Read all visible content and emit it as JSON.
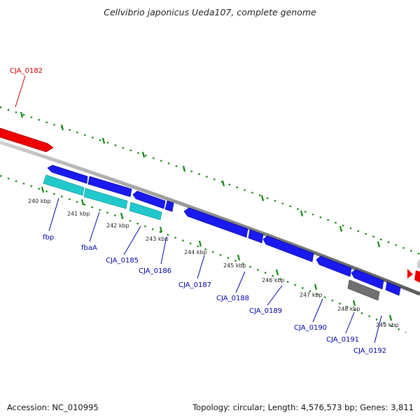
{
  "title": "Cellvibrio japonicus Ueda107, complete genome",
  "footer": {
    "accession": "Accession: NC_010995",
    "topology": "Topology: circular; Length: 4,576,573 bp; Genes: 3,811"
  },
  "colors": {
    "forward_gene": "#ee0000",
    "reverse_gene": "#1a1aee",
    "rna_gene": "#22c8cc",
    "other_gene": "#707070",
    "tick": "#118811",
    "label_forward": "#cc0000",
    "label_reverse": "#0000aa",
    "backbone": "#888888"
  },
  "scale": {
    "unit": "kbp",
    "ticks": [
      "240 kbp",
      "241 kbp",
      "242 kbp",
      "243 kbp",
      "244 kbp",
      "245 kbp",
      "246 kbp",
      "247 kbp",
      "248 kbp",
      "249 kbp"
    ]
  },
  "genes": {
    "forward": [
      "CJA_0182"
    ],
    "reverse": [
      "fbp",
      "fbaA",
      "CJA_0185",
      "CJA_0186",
      "CJA_0187",
      "CJA_0188",
      "CJA_0189",
      "CJA_0190",
      "CJA_0191",
      "CJA_0192"
    ]
  }
}
